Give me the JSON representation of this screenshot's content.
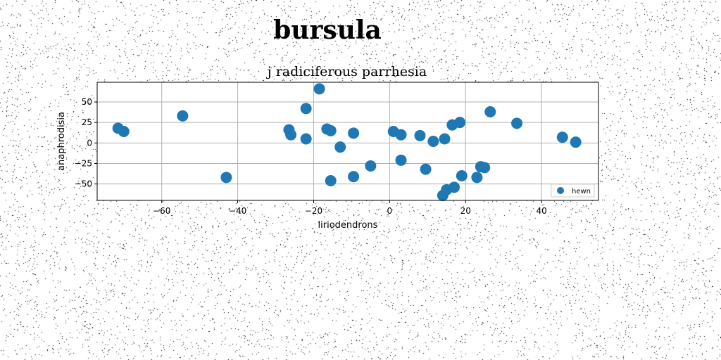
{
  "title": "bursula",
  "chart_data": {
    "type": "scatter",
    "title": "j radiciferous parrhesia",
    "xlabel": "liriodendrons",
    "ylabel": "anaphrodisia",
    "xlim": [
      -77,
      55
    ],
    "ylim": [
      -70,
      74
    ],
    "xticks": [
      -60,
      -40,
      -20,
      0,
      20,
      40
    ],
    "yticks": [
      -50,
      -25,
      0,
      25,
      50
    ],
    "xtick_labels": [
      "−60",
      "−40",
      "−20",
      "0",
      "20",
      "40"
    ],
    "ytick_labels": [
      "−50",
      "−25",
      "0",
      "25",
      "50"
    ],
    "grid": true,
    "legend_position": "bottom-right",
    "series": [
      {
        "name": "hewn",
        "color": "#1f77b4",
        "points": [
          [
            -71.5,
            18
          ],
          [
            -70,
            14
          ],
          [
            -54.5,
            33
          ],
          [
            -43,
            -42
          ],
          [
            -26.5,
            16
          ],
          [
            -26,
            10
          ],
          [
            -22,
            42
          ],
          [
            -22,
            5
          ],
          [
            -18.5,
            66
          ],
          [
            -16.5,
            17
          ],
          [
            -15.5,
            15
          ],
          [
            -15.5,
            -46
          ],
          [
            -13,
            -5
          ],
          [
            -9.5,
            12
          ],
          [
            -9.5,
            -41
          ],
          [
            -5,
            -28
          ],
          [
            1,
            14
          ],
          [
            3,
            10
          ],
          [
            3,
            -21
          ],
          [
            8,
            9
          ],
          [
            9.5,
            -32
          ],
          [
            11.5,
            2
          ],
          [
            14,
            -64
          ],
          [
            14.5,
            5
          ],
          [
            15,
            -57
          ],
          [
            16.5,
            22
          ],
          [
            17,
            -54
          ],
          [
            18.5,
            25
          ],
          [
            19,
            -40
          ],
          [
            23,
            -42
          ],
          [
            24,
            -29
          ],
          [
            25,
            -30
          ],
          [
            26.5,
            38
          ],
          [
            33.5,
            24
          ],
          [
            45.5,
            7
          ],
          [
            49,
            1
          ]
        ]
      }
    ]
  }
}
